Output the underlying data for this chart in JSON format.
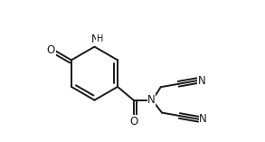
{
  "bg_color": "#ffffff",
  "line_color": "#1a1a1a",
  "line_width": 1.4,
  "font_size": 8.5,
  "fig_width": 2.93,
  "fig_height": 1.57,
  "dpi": 100,
  "xlim": [
    0,
    1
  ],
  "ylim": [
    0,
    1
  ]
}
